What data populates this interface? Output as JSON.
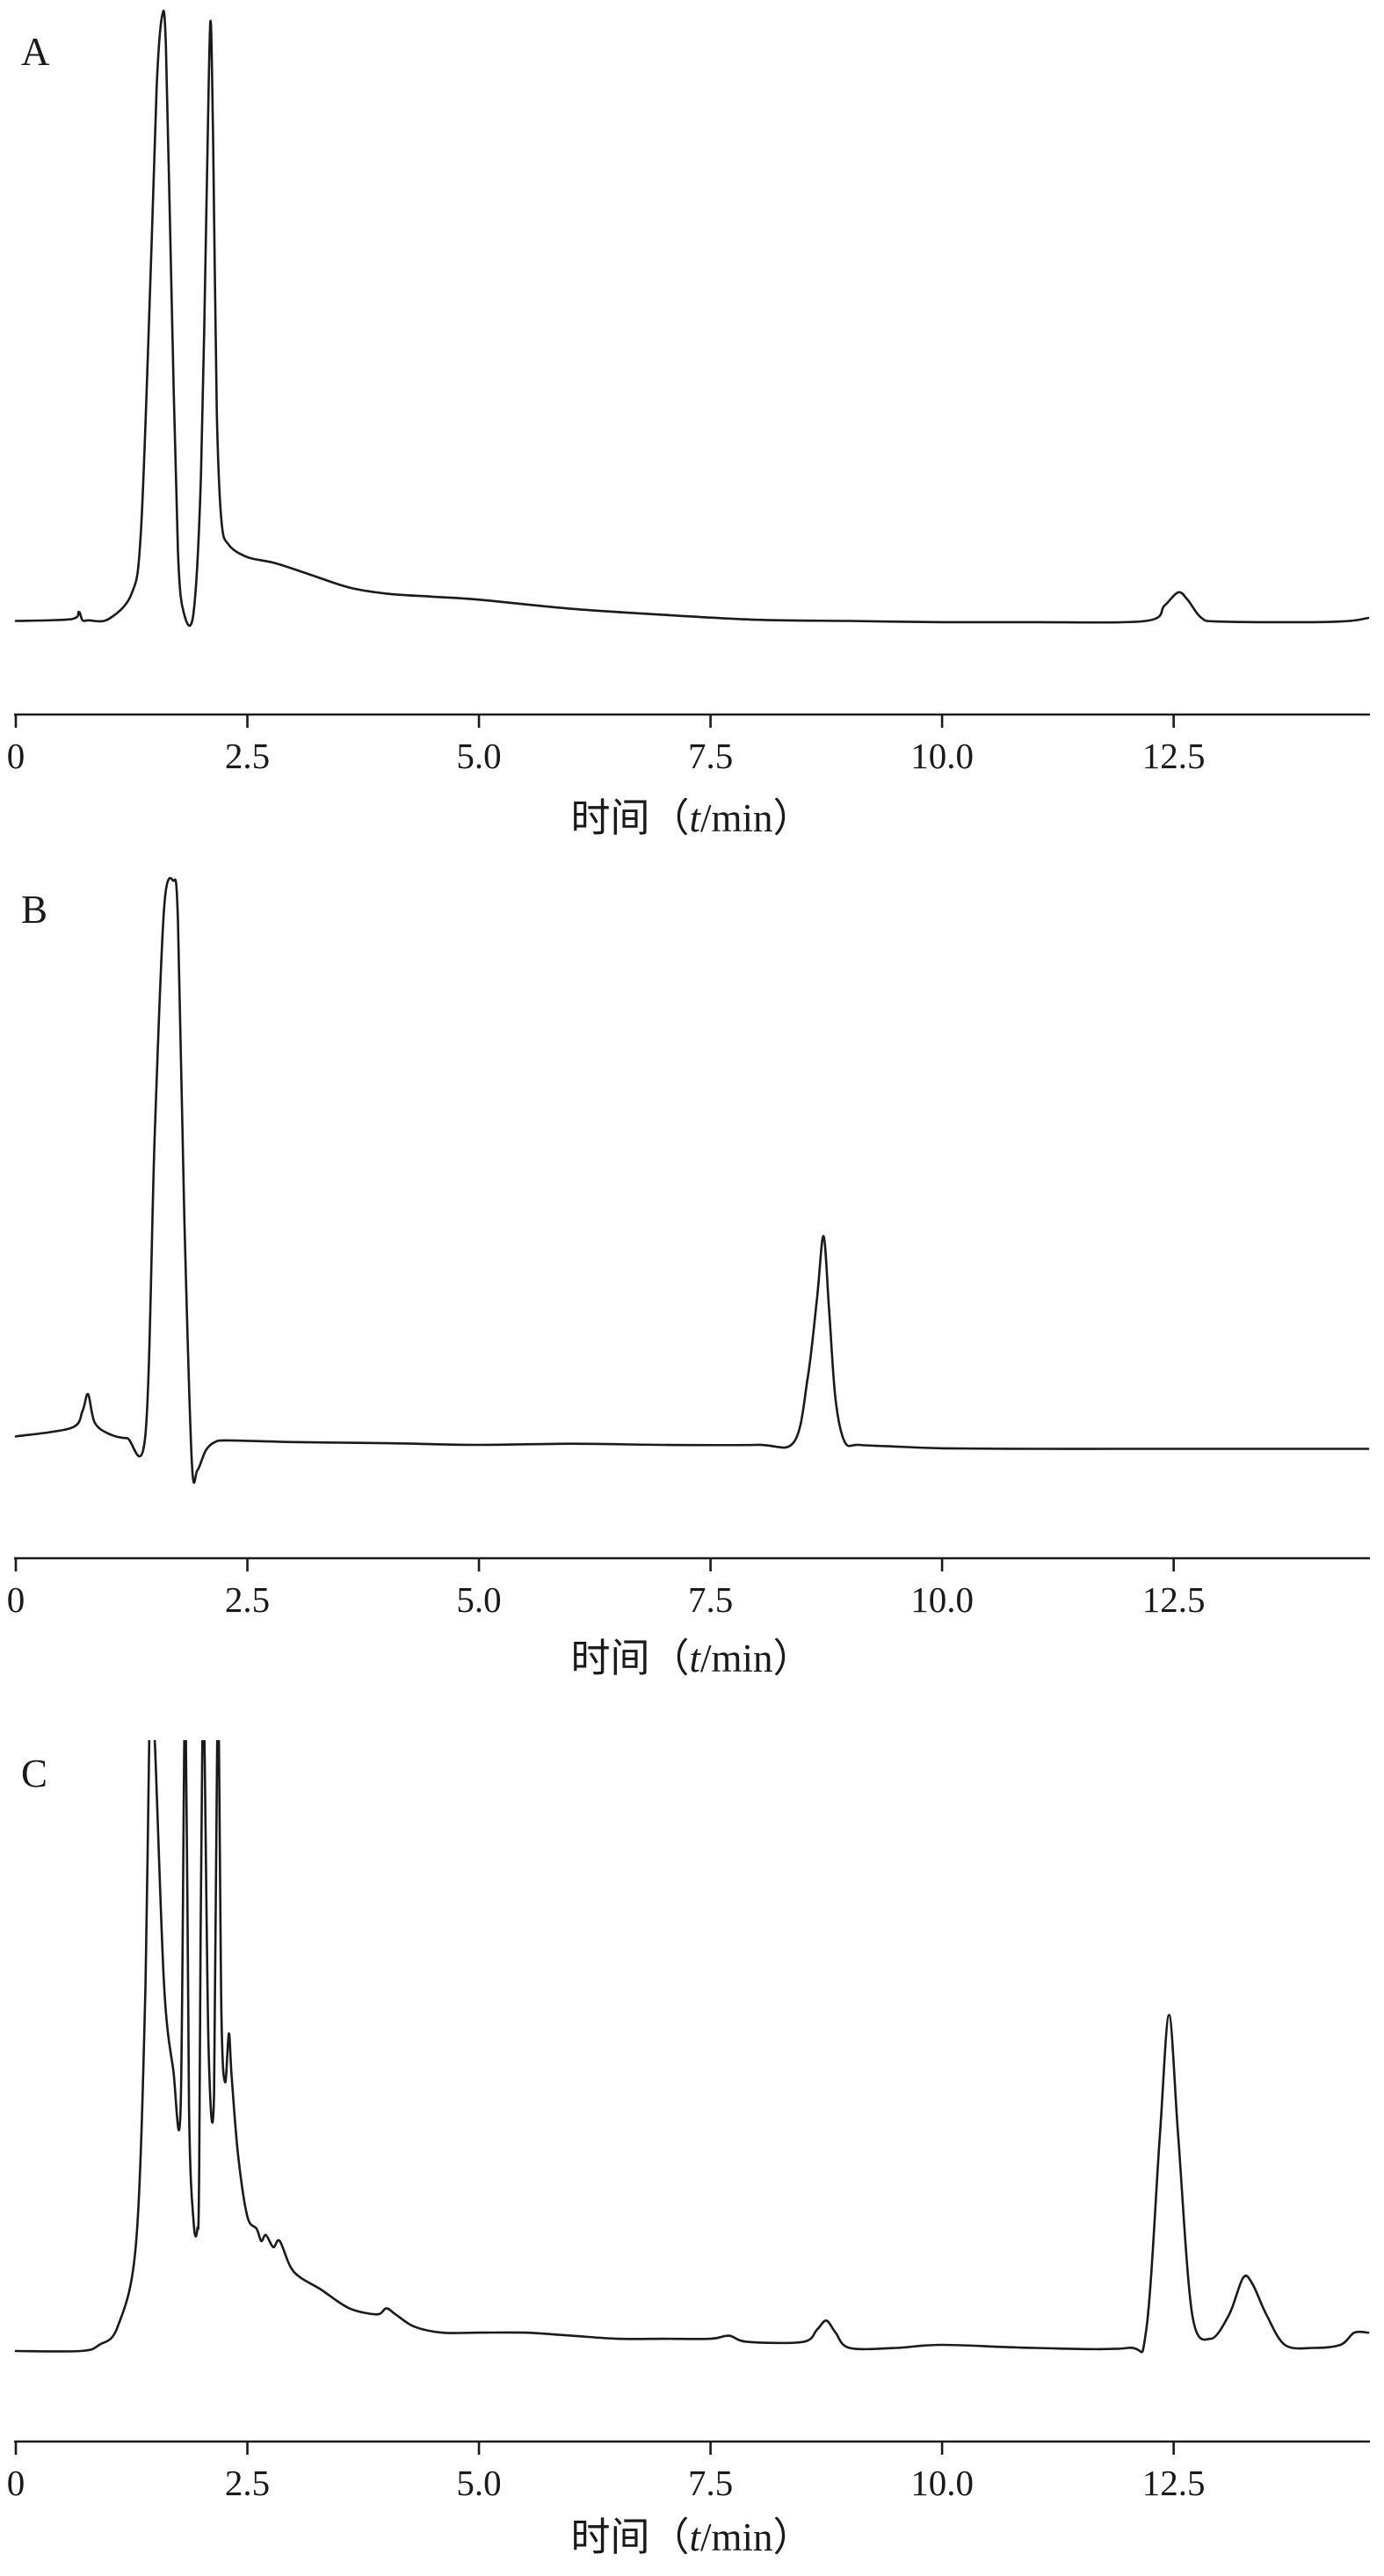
{
  "chart_data": [
    {
      "type": "line",
      "panel_label": "A",
      "xlabel_prefix": "时间（",
      "xlabel_var": "t",
      "xlabel_suffix": "/min）",
      "xlim": [
        0,
        14.6
      ],
      "ylim": [
        0,
        100
      ],
      "x_ticks": [
        0,
        2.5,
        5.0,
        7.5,
        10.0,
        12.5
      ],
      "x_tick_labels": [
        "0",
        "2.5",
        "5.0",
        "7.5",
        "10.0",
        "12.5"
      ],
      "y_axis_shown": false,
      "grid": false,
      "series": [
        {
          "x": [
            0,
            0.6,
            0.68,
            0.72,
            0.78,
            1.0,
            1.25,
            1.35,
            1.45,
            1.52,
            1.58,
            1.62,
            1.68,
            1.75,
            1.82,
            1.92,
            2.0,
            2.06,
            2.1,
            2.13,
            2.17,
            2.22,
            2.3,
            2.5,
            2.8,
            3.2,
            3.6,
            4.0,
            4.5,
            5.0,
            6.0,
            7.0,
            8.0,
            9.0,
            10.0,
            11.0,
            12.2,
            12.4,
            12.55,
            12.65,
            12.8,
            13.0,
            14.0,
            14.4,
            14.6
          ],
          "y": [
            0.5,
            0.8,
            2.0,
            0.6,
            0.6,
            0.8,
            5.0,
            15.0,
            55.0,
            88.0,
            100.0,
            95.0,
            55.0,
            12.0,
            1.5,
            2.0,
            25.0,
            70.0,
            99.0,
            80.0,
            35.0,
            17.0,
            13.0,
            11.0,
            10.0,
            8.0,
            6.0,
            5.0,
            4.5,
            4.0,
            2.5,
            1.5,
            0.7,
            0.5,
            0.3,
            0.3,
            0.5,
            3.0,
            5.2,
            4.0,
            1.0,
            0.4,
            0.3,
            0.5,
            1.0
          ]
        }
      ]
    },
    {
      "type": "line",
      "panel_label": "B",
      "xlabel_prefix": "时间（",
      "xlabel_var": "t",
      "xlabel_suffix": "/min）",
      "xlim": [
        0,
        14.6
      ],
      "ylim": [
        0,
        100
      ],
      "x_ticks": [
        0,
        2.5,
        5.0,
        7.5,
        10.0,
        12.5
      ],
      "x_tick_labels": [
        "0",
        "2.5",
        "5.0",
        "7.5",
        "10.0",
        "12.5"
      ],
      "y_axis_shown": false,
      "grid": false,
      "series": [
        {
          "x": [
            0,
            0.6,
            0.72,
            0.78,
            0.85,
            1.0,
            1.2,
            1.4,
            1.5,
            1.6,
            1.7,
            1.75,
            1.82,
            1.9,
            1.96,
            2.05,
            2.15,
            2.3,
            3.0,
            4.0,
            5.0,
            6.0,
            7.0,
            8.0,
            8.4,
            8.55,
            8.65,
            8.72,
            8.78,
            8.85,
            8.95,
            9.1,
            9.5,
            10.0,
            11.0,
            12.0,
            13.0,
            14.0,
            14.6
          ],
          "y": [
            1.5,
            3.0,
            6.0,
            9.0,
            4.0,
            2.0,
            1.2,
            2.0,
            55.0,
            95.0,
            100.0,
            93.0,
            40.0,
            -3.0,
            -4.5,
            -1.0,
            0.5,
            0.8,
            0.5,
            0.3,
            0.0,
            0.2,
            0.0,
            0.0,
            0.5,
            12.0,
            26.0,
            37.0,
            24.0,
            8.0,
            0.5,
            0.0,
            -0.3,
            -0.6,
            -0.7,
            -0.7,
            -0.7,
            -0.7,
            -0.7
          ]
        }
      ]
    },
    {
      "type": "line",
      "panel_label": "C",
      "xlabel_prefix": "时间（",
      "xlabel_var": "t",
      "xlabel_suffix": "/min）",
      "xlim": [
        0,
        14.6
      ],
      "ylim": [
        0,
        100
      ],
      "x_ticks": [
        0,
        2.5,
        5.0,
        7.5,
        10.0,
        12.5
      ],
      "x_tick_labels": [
        "0",
        "2.5",
        "5.0",
        "7.5",
        "10.0",
        "12.5"
      ],
      "y_axis_shown": false,
      "grid": false,
      "series": [
        {
          "x": [
            0,
            0.7,
            0.9,
            1.1,
            1.3,
            1.4,
            1.45,
            1.5,
            1.6,
            1.7,
            1.78,
            1.83,
            1.87,
            1.92,
            1.96,
            1.98,
            2.02,
            2.08,
            2.14,
            2.18,
            2.22,
            2.26,
            2.3,
            2.33,
            2.4,
            2.5,
            2.6,
            2.65,
            2.7,
            2.78,
            2.85,
            3.0,
            3.3,
            3.6,
            3.9,
            4.0,
            4.1,
            4.3,
            4.6,
            5.0,
            5.5,
            6.0,
            6.5,
            7.0,
            7.5,
            7.7,
            7.9,
            8.5,
            8.65,
            8.75,
            8.85,
            9.0,
            9.5,
            10.0,
            11.0,
            12.0,
            12.2,
            12.35,
            12.45,
            12.55,
            12.7,
            12.9,
            13.1,
            13.25,
            13.35,
            13.5,
            13.7,
            14.0,
            14.3,
            14.45,
            14.6
          ],
          "y": [
            0,
            0,
            1.0,
            4.0,
            18.0,
            60.0,
            110.0,
            100.0,
            60.0,
            46.0,
            40.0,
            110.0,
            40.0,
            21.0,
            20.0,
            30.0,
            110.0,
            50.0,
            42.0,
            110.0,
            55.0,
            44.0,
            52.0,
            45.0,
            32.0,
            22.0,
            20.0,
            18.0,
            19.0,
            17.0,
            18.0,
            13.0,
            10.0,
            7.0,
            6.0,
            7.0,
            6.0,
            4.0,
            3.0,
            3.0,
            3.0,
            2.5,
            2.0,
            2.0,
            2.0,
            2.5,
            1.5,
            1.5,
            3.5,
            5.0,
            3.0,
            0.5,
            0.5,
            1.0,
            0.5,
            0.5,
            3.0,
            35.0,
            55.0,
            35.0,
            6.0,
            2.0,
            6.0,
            12.0,
            11.0,
            6.0,
            1.0,
            0.5,
            1.0,
            3.0,
            3.0
          ]
        }
      ]
    }
  ]
}
